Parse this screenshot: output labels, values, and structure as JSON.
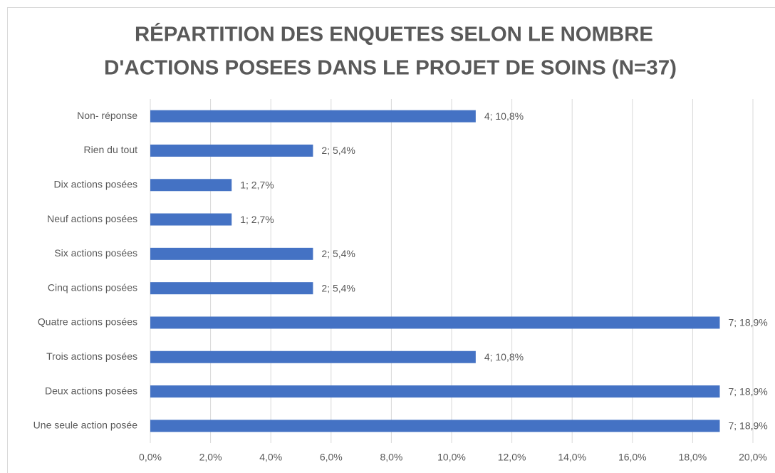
{
  "chart_data": {
    "type": "bar",
    "orientation": "horizontal",
    "title": [
      "RÉPARTITION DES ENQUETES SELON LE NOMBRE",
      "D'ACTIONS POSEES DANS LE PROJET DE SOINS (N=37)"
    ],
    "categories": [
      "Non- réponse",
      "Rien du tout",
      "Dix actions posées",
      "Neuf actions posées",
      "Six actions posées",
      "Cinq actions posées",
      "Quatre actions posées",
      "Trois actions posées",
      "Deux actions posées",
      "Une seule action posée"
    ],
    "values": [
      10.8,
      5.4,
      2.7,
      2.7,
      5.4,
      5.4,
      18.9,
      10.8,
      18.9,
      18.9
    ],
    "value_labels": [
      "4; 10,8%",
      "2; 5,4%",
      "1; 2,7%",
      "1; 2,7%",
      "2; 5,4%",
      "2; 5,4%",
      "7; 18,9%",
      "4; 10,8%",
      "7; 18,9%",
      "7; 18,9%"
    ],
    "color": "#4472c4",
    "xlim": [
      0,
      20
    ],
    "xticks": [
      {
        "value": 0,
        "label": "0,0%"
      },
      {
        "value": 2,
        "label": "2,0%"
      },
      {
        "value": 4,
        "label": "4,0%"
      },
      {
        "value": 6,
        "label": "6,0%"
      },
      {
        "value": 8,
        "label": "8,0%"
      },
      {
        "value": 10,
        "label": "10,0%"
      },
      {
        "value": 12,
        "label": "12,0%"
      },
      {
        "value": 14,
        "label": "14,0%"
      },
      {
        "value": 16,
        "label": "16,0%"
      },
      {
        "value": 18,
        "label": "18,0%"
      },
      {
        "value": 20,
        "label": "20,0%"
      }
    ],
    "grid": true
  }
}
